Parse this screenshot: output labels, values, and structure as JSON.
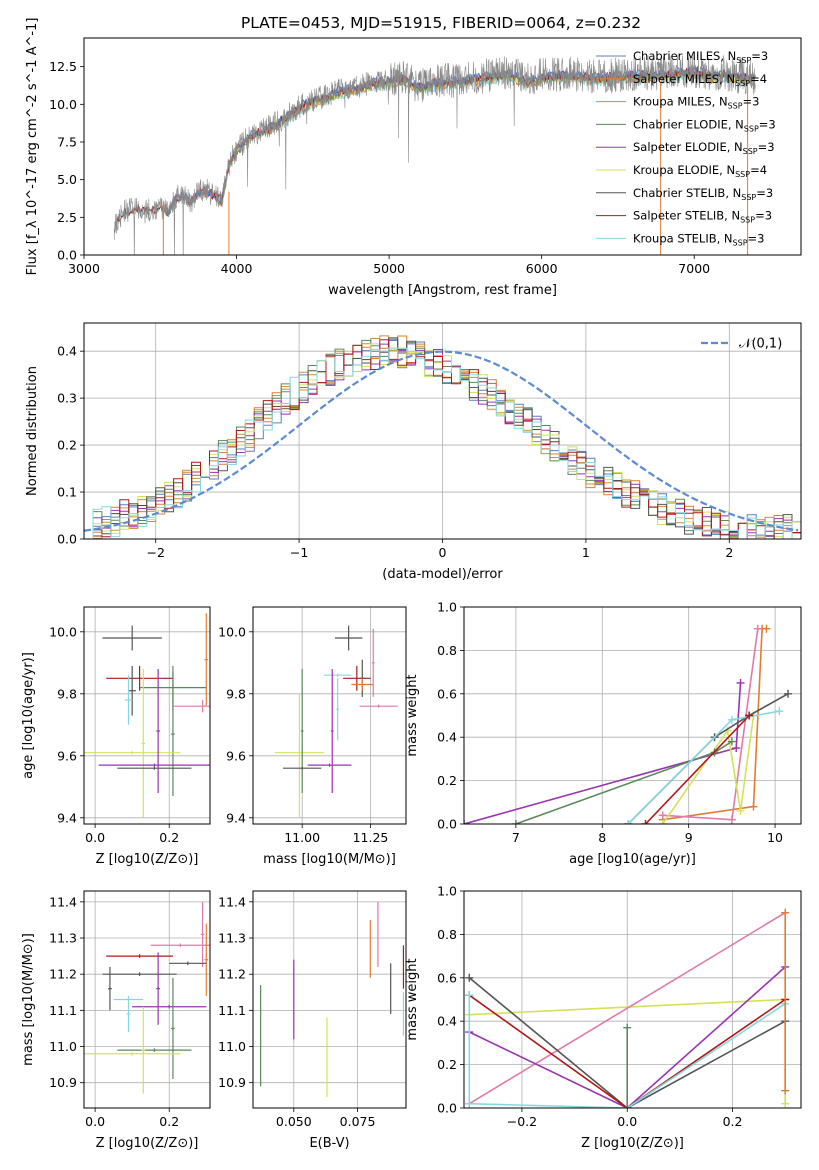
{
  "figure_title": "PLATE=0453, MJD=51915, FIBERID=0064, z=0.232",
  "colors": {
    "Chabrier MILES": "#5b7fbf",
    "Salpeter MILES": "#e47c30",
    "Kroupa MILES": "#c8903a",
    "Chabrier ELODIE": "#5a8a5a",
    "Salpeter ELODIE": "#9a33b0",
    "Kroupa ELODIE": "#d4e25a",
    "Chabrier STELIB": "#555555",
    "Salpeter STELIB": "#b01818",
    "Kroupa STELIB": "#86d8e0",
    "pink": "#e07aa8",
    "gauss": "#5b8ad6"
  },
  "chart_data": [
    {
      "id": "spectrum",
      "type": "line",
      "title": "PLATE=0453, MJD=51915, FIBERID=0064, z=0.232",
      "xlabel": "wavelength [Angstrom, rest frame]",
      "ylabel": "Flux [f_λ 10^-17 erg cm^-2 s^-1 A^-1]",
      "xlim": [
        3000,
        7700
      ],
      "ylim": [
        0,
        14.4
      ],
      "xticks": [
        3000,
        4000,
        5000,
        6000,
        7000
      ],
      "yticks": [
        0.0,
        2.5,
        5.0,
        7.5,
        10.0,
        12.5
      ],
      "grid": false,
      "legend_position": "upper right",
      "legend": [
        {
          "name": "Chabrier MILES",
          "n": "3"
        },
        {
          "name": "Salpeter MILES",
          "n": "4"
        },
        {
          "name": "Kroupa MILES",
          "n": "3"
        },
        {
          "name": "Chabrier ELODIE",
          "n": "3"
        },
        {
          "name": "Salpeter ELODIE",
          "n": "3"
        },
        {
          "name": "Kroupa ELODIE",
          "n": "4"
        },
        {
          "name": "Chabrier STELIB",
          "n": "3"
        },
        {
          "name": "Salpeter STELIB",
          "n": "3"
        },
        {
          "name": "Kroupa STELIB",
          "n": "3"
        }
      ],
      "series": [
        {
          "name": "observed (grey)",
          "x": [
            3200,
            3250,
            3300,
            3350,
            3400,
            3450,
            3500,
            3550,
            3600,
            3650,
            3700,
            3750,
            3800,
            3850,
            3900,
            3950,
            4000,
            4100,
            4200,
            4300,
            4400,
            4500,
            4600,
            4700,
            4800,
            4900,
            5000,
            5100,
            5200,
            5300,
            5400,
            5500,
            5600,
            5700,
            5800,
            5900,
            6000,
            6100,
            6200,
            6300,
            6400,
            6500,
            6600,
            6700,
            6800,
            6900,
            7000,
            7100,
            7200,
            7300,
            7400
          ],
          "y": [
            1.8,
            2.8,
            3.0,
            3.1,
            2.9,
            3.0,
            3.2,
            2.8,
            3.8,
            4.0,
            3.5,
            4.2,
            4.3,
            4.0,
            3.6,
            6.0,
            7.0,
            8.0,
            8.4,
            9.0,
            9.8,
            10.3,
            10.6,
            11.0,
            11.2,
            11.5,
            11.6,
            11.8,
            11.2,
            11.5,
            11.6,
            11.7,
            11.8,
            12.0,
            12.1,
            11.6,
            11.9,
            12.0,
            12.0,
            11.9,
            11.8,
            12.0,
            12.0,
            12.1,
            12.0,
            12.2,
            12.3,
            12.0,
            12.1,
            11.9,
            11.8
          ]
        }
      ]
    },
    {
      "id": "residuals",
      "type": "step",
      "xlabel": "(data-model)/error",
      "ylabel": "Normed distribution",
      "xlim": [
        -2.5,
        2.5
      ],
      "ylim": [
        0,
        0.46
      ],
      "xticks": [
        -2,
        -1,
        0,
        1,
        2
      ],
      "yticks": [
        0.0,
        0.1,
        0.2,
        0.3,
        0.4
      ],
      "grid": true,
      "legend_position": "upper right",
      "legend": [
        "𝒩(0,1)"
      ],
      "gaussian": {
        "mu": 0,
        "sigma": 1
      },
      "bin_edges_start": -2.5,
      "bin_width": 0.1,
      "base_hist": [
        0.027,
        0.03,
        0.035,
        0.04,
        0.05,
        0.055,
        0.06,
        0.07,
        0.075,
        0.09,
        0.1,
        0.115,
        0.13,
        0.14,
        0.16,
        0.175,
        0.19,
        0.205,
        0.22,
        0.245,
        0.26,
        0.28,
        0.3,
        0.31,
        0.325,
        0.34,
        0.35,
        0.36,
        0.37,
        0.38,
        0.385,
        0.39,
        0.395,
        0.398,
        0.4,
        0.398,
        0.395,
        0.39,
        0.38,
        0.37,
        0.36,
        0.35,
        0.34,
        0.33,
        0.32,
        0.31,
        0.295,
        0.28,
        0.265,
        0.25,
        0.23,
        0.215,
        0.2,
        0.185,
        0.17,
        0.155,
        0.14,
        0.13,
        0.12,
        0.11,
        0.1,
        0.09,
        0.08,
        0.07,
        0.062,
        0.055,
        0.05,
        0.045,
        0.04,
        0.035,
        0.03,
        0.028,
        0.025,
        0.023,
        0.022,
        0.02,
        0.02,
        0.02,
        0.02,
        0.02
      ],
      "series": [
        "Chabrier MILES",
        "Salpeter MILES",
        "Kroupa MILES",
        "Chabrier ELODIE",
        "Salpeter ELODIE",
        "Kroupa ELODIE",
        "Chabrier STELIB",
        "Salpeter STELIB",
        "Kroupa STELIB"
      ]
    },
    {
      "id": "age_vs_Z",
      "type": "errorbar",
      "xlabel": "Z [log10(Z/Z⊙)]",
      "ylabel": "age  [log10(age/yr)]",
      "xlim": [
        -0.03,
        0.31
      ],
      "ylim": [
        9.38,
        10.08
      ],
      "xticks": [
        0.0,
        0.2
      ],
      "yticks": [
        9.4,
        9.6,
        9.8,
        10.0
      ],
      "grid": true,
      "points": [
        {
          "s": "Chabrier STELIB",
          "x": 0.1,
          "xe": 0.08,
          "y": 9.98,
          "ye": 0.04
        },
        {
          "s": "Salpeter STELIB",
          "x": 0.12,
          "xe": 0.09,
          "y": 9.85,
          "ye": 0.04
        },
        {
          "s": "Chabrier STELIB",
          "x": 0.1,
          "xe": 0.01,
          "y": 9.81,
          "ye": 0.08
        },
        {
          "s": "Kroupa STELIB",
          "x": 0.09,
          "xe": 0.01,
          "y": 9.78,
          "ye": 0.08
        },
        {
          "s": "Salpeter MILES",
          "x": 0.3,
          "xe": 0.005,
          "y": 9.91,
          "ye": 0.15
        },
        {
          "s": "Chabrier ELODIE",
          "x": 0.21,
          "xe": 0.09,
          "y": 9.82,
          "ye": 0.07
        },
        {
          "s": "Chabrier ELODIE",
          "x": 0.21,
          "xe": 0.005,
          "y": 9.67,
          "ye": 0.2
        },
        {
          "s": "pink",
          "x": 0.29,
          "xe": 0.08,
          "y": 9.76,
          "ye": 0.02
        },
        {
          "s": "Kroupa ELODIE",
          "x": 0.13,
          "xe": 0.005,
          "y": 9.64,
          "ye": 0.24
        },
        {
          "s": "Kroupa ELODIE",
          "x": 0.1,
          "xe": 0.13,
          "y": 9.61,
          "ye": 0.005
        },
        {
          "s": "Salpeter ELODIE",
          "x": 0.17,
          "xe": 0.005,
          "y": 9.68,
          "ye": 0.2
        },
        {
          "s": "Salpeter ELODIE",
          "x": 0.16,
          "xe": 0.15,
          "y": 9.57,
          "ye": 0.005
        },
        {
          "s": "Chabrier STELIB",
          "x": 0.16,
          "xe": 0.1,
          "y": 9.56,
          "ye": 0.005
        }
      ]
    },
    {
      "id": "age_vs_mass",
      "type": "errorbar",
      "xlabel": "mass [log10(M/M⊙)]",
      "ylabel": "",
      "xlim": [
        10.82,
        11.38
      ],
      "ylim": [
        9.38,
        10.08
      ],
      "xticks": [
        11.0,
        11.25
      ],
      "yticks": [
        9.4,
        9.6,
        9.8,
        10.0
      ],
      "grid": true,
      "points": [
        {
          "s": "Chabrier STELIB",
          "x": 11.17,
          "xe": 0.05,
          "y": 9.98,
          "ye": 0.04
        },
        {
          "s": "Salpeter STELIB",
          "x": 11.2,
          "xe": 0.05,
          "y": 9.85,
          "ye": 0.04
        },
        {
          "s": "Chabrier STELIB",
          "x": 11.22,
          "xe": 0.01,
          "y": 9.85,
          "ye": 0.06
        },
        {
          "s": "Salpeter MILES",
          "x": 11.22,
          "xe": 0.04,
          "y": 9.83,
          "ye": 0.02
        },
        {
          "s": "Kroupa STELIB",
          "x": 11.13,
          "xe": 0.05,
          "y": 9.86,
          "ye": 0.005
        },
        {
          "s": "Kroupa STELIB",
          "x": 11.13,
          "xe": 0.005,
          "y": 9.75,
          "ye": 0.1
        },
        {
          "s": "pink",
          "x": 11.28,
          "xe": 0.07,
          "y": 9.76,
          "ye": 0.005
        },
        {
          "s": "pink",
          "x": 11.26,
          "xe": 0.005,
          "y": 9.9,
          "ye": 0.11
        },
        {
          "s": "Salpeter ELODIE",
          "x": 11.11,
          "xe": 0.005,
          "y": 9.68,
          "ye": 0.2
        },
        {
          "s": "Salpeter ELODIE",
          "x": 11.1,
          "xe": 0.08,
          "y": 9.57,
          "ye": 0.005
        },
        {
          "s": "Kroupa ELODIE",
          "x": 10.99,
          "xe": 0.09,
          "y": 9.61,
          "ye": 0.005
        },
        {
          "s": "Kroupa ELODIE",
          "x": 10.99,
          "xe": 0.005,
          "y": 9.6,
          "ye": 0.2
        },
        {
          "s": "Chabrier ELODIE",
          "x": 11.0,
          "xe": 0.005,
          "y": 9.68,
          "ye": 0.2
        },
        {
          "s": "Chabrier STELIB",
          "x": 11.0,
          "xe": 0.07,
          "y": 9.56,
          "ye": 0.005
        }
      ]
    },
    {
      "id": "massweight_vs_age",
      "type": "line",
      "xlabel": "age  [log10(age/yr)]",
      "ylabel": "mass weight",
      "xlim": [
        6.4,
        10.3
      ],
      "ylim": [
        0,
        1.0
      ],
      "xticks": [
        7,
        8,
        9,
        10
      ],
      "yticks": [
        0.0,
        0.2,
        0.4,
        0.6,
        0.8,
        1.0
      ],
      "grid": true,
      "series": [
        {
          "s": "Salpeter MILES",
          "x": [
            8.7,
            9.75,
            9.85,
            9.9
          ],
          "y": [
            0.02,
            0.08,
            0.9,
            0.9
          ]
        },
        {
          "s": "pink",
          "x": [
            8.7,
            9.5,
            9.8
          ],
          "y": [
            0.04,
            0.02,
            0.9
          ]
        },
        {
          "s": "Salpeter ELODIE",
          "x": [
            6.4,
            9.55,
            9.6
          ],
          "y": [
            0.0,
            0.35,
            0.65
          ]
        },
        {
          "s": "Kroupa ELODIE",
          "x": [
            8.7,
            9.45,
            9.6,
            9.75
          ],
          "y": [
            0.0,
            0.43,
            0.06,
            0.5
          ]
        },
        {
          "s": "Chabrier ELODIE",
          "x": [
            7.0,
            9.3,
            9.5
          ],
          "y": [
            0.0,
            0.33,
            0.38
          ]
        },
        {
          "s": "Chabrier STELIB",
          "x": [
            8.3,
            9.3,
            9.7,
            10.15
          ],
          "y": [
            0.0,
            0.4,
            0.5,
            0.6
          ]
        },
        {
          "s": "Kroupa STELIB",
          "x": [
            8.3,
            9.5,
            10.05
          ],
          "y": [
            0.0,
            0.48,
            0.52
          ]
        },
        {
          "s": "Salpeter STELIB",
          "x": [
            8.5,
            9.7
          ],
          "y": [
            0.0,
            0.5
          ]
        }
      ]
    },
    {
      "id": "mass_vs_Z",
      "type": "errorbar",
      "xlabel": "Z [log10(Z/Z⊙)]",
      "ylabel": "mass [log10(M/M⊙)]",
      "xlim": [
        -0.03,
        0.31
      ],
      "ylim": [
        10.83,
        11.43
      ],
      "xticks": [
        0.0,
        0.2
      ],
      "yticks": [
        10.9,
        11.0,
        11.1,
        11.2,
        11.3,
        11.4
      ],
      "grid": true,
      "points": [
        {
          "s": "Salpeter STELIB",
          "x": 0.12,
          "xe": 0.09,
          "y": 11.25,
          "ye": 0.005
        },
        {
          "s": "Chabrier STELIB",
          "x": 0.12,
          "xe": 0.1,
          "y": 11.2,
          "ye": 0.005
        },
        {
          "s": "Chabrier STELIB",
          "x": 0.04,
          "xe": 0.005,
          "y": 11.16,
          "ye": 0.06
        },
        {
          "s": "pink",
          "x": 0.23,
          "xe": 0.08,
          "y": 11.28,
          "ye": 0.005
        },
        {
          "s": "pink",
          "x": 0.29,
          "xe": 0.005,
          "y": 11.31,
          "ye": 0.09
        },
        {
          "s": "Salpeter MILES",
          "x": 0.3,
          "xe": 0.005,
          "y": 11.24,
          "ye": 0.1
        },
        {
          "s": "Chabrier STELIB",
          "x": 0.25,
          "xe": 0.05,
          "y": 11.23,
          "ye": 0.005
        },
        {
          "s": "Kroupa STELIB",
          "x": 0.09,
          "xe": 0.04,
          "y": 11.13,
          "ye": 0.005
        },
        {
          "s": "Kroupa STELIB",
          "x": 0.09,
          "xe": 0.005,
          "y": 11.09,
          "ye": 0.05
        },
        {
          "s": "Salpeter ELODIE",
          "x": 0.17,
          "xe": 0.005,
          "y": 11.16,
          "ye": 0.1
        },
        {
          "s": "Salpeter ELODIE",
          "x": 0.2,
          "xe": 0.1,
          "y": 11.11,
          "ye": 0.005
        },
        {
          "s": "Chabrier ELODIE",
          "x": 0.21,
          "xe": 0.005,
          "y": 11.05,
          "ye": 0.14
        },
        {
          "s": "Chabrier ELODIE",
          "x": 0.16,
          "xe": 0.1,
          "y": 10.99,
          "ye": 0.005
        },
        {
          "s": "Kroupa ELODIE",
          "x": 0.13,
          "xe": 0.005,
          "y": 10.99,
          "ye": 0.12
        },
        {
          "s": "Kroupa ELODIE",
          "x": 0.1,
          "xe": 0.13,
          "y": 10.98,
          "ye": 0.005
        }
      ]
    },
    {
      "id": "mass_vs_EBV",
      "type": "errorbar",
      "xlabel": "E(B-V)",
      "ylabel": "",
      "xlim": [
        0.034,
        0.094
      ],
      "ylim": [
        10.83,
        11.43
      ],
      "xticks": [
        0.05,
        0.075
      ],
      "tick_labels": [
        "0.050",
        "0.075"
      ],
      "yticks": [
        10.9,
        11.0,
        11.1,
        11.2,
        11.3,
        11.4
      ],
      "grid": true,
      "points": [
        {
          "s": "Chabrier ELODIE",
          "x": 0.037,
          "y": 11.03,
          "ye": 0.14
        },
        {
          "s": "Salpeter ELODIE",
          "x": 0.05,
          "y": 11.13,
          "ye": 0.11
        },
        {
          "s": "Kroupa ELODIE",
          "x": 0.063,
          "y": 10.97,
          "ye": 0.11
        },
        {
          "s": "Salpeter MILES",
          "x": 0.08,
          "y": 11.27,
          "ye": 0.08
        },
        {
          "s": "pink",
          "x": 0.083,
          "y": 11.31,
          "ye": 0.09
        },
        {
          "s": "Chabrier STELIB",
          "x": 0.088,
          "y": 11.16,
          "ye": 0.07
        },
        {
          "s": "Salpeter STELIB",
          "x": 0.093,
          "y": 11.22,
          "ye": 0.06
        },
        {
          "s": "Kroupa STELIB",
          "x": 0.093,
          "y": 11.09,
          "ye": 0.06
        }
      ]
    },
    {
      "id": "massweight_vs_Z",
      "type": "line",
      "xlabel": "Z [log10(Z/Z⊙)]",
      "ylabel": "mass weight",
      "xlim": [
        -0.31,
        0.33
      ],
      "ylim": [
        0,
        1.0
      ],
      "xticks": [
        -0.2,
        0.0,
        0.2
      ],
      "yticks": [
        0.0,
        0.2,
        0.4,
        0.6,
        0.8,
        1.0
      ],
      "grid": true,
      "series": [
        {
          "s": "Kroupa ELODIE",
          "x": [
            -0.3,
            0.3,
            0.3
          ],
          "y": [
            0.43,
            0.5,
            0.02
          ]
        },
        {
          "s": "pink",
          "x": [
            -0.3,
            0.3
          ],
          "y": [
            0.02,
            0.9
          ]
        },
        {
          "s": "Salpeter ELODIE",
          "x": [
            -0.3,
            0.0,
            0.3
          ],
          "y": [
            0.35,
            0.0,
            0.65
          ]
        },
        {
          "s": "Chabrier STELIB",
          "x": [
            -0.3,
            0.0,
            0.3
          ],
          "y": [
            0.6,
            0.0,
            0.4
          ]
        },
        {
          "s": "Salpeter STELIB",
          "x": [
            -0.3,
            0.0,
            0.3
          ],
          "y": [
            0.52,
            0.0,
            0.5
          ]
        },
        {
          "s": "Kroupa STELIB",
          "x": [
            -0.3,
            -0.3,
            0.0,
            0.3
          ],
          "y": [
            0.52,
            0.02,
            0.0,
            0.48
          ]
        },
        {
          "s": "Chabrier ELODIE",
          "x": [
            0.0,
            0.0
          ],
          "y": [
            0.0,
            0.37
          ]
        },
        {
          "s": "Salpeter MILES",
          "x": [
            0.3,
            0.3
          ],
          "y": [
            0.08,
            0.9
          ]
        }
      ]
    }
  ]
}
